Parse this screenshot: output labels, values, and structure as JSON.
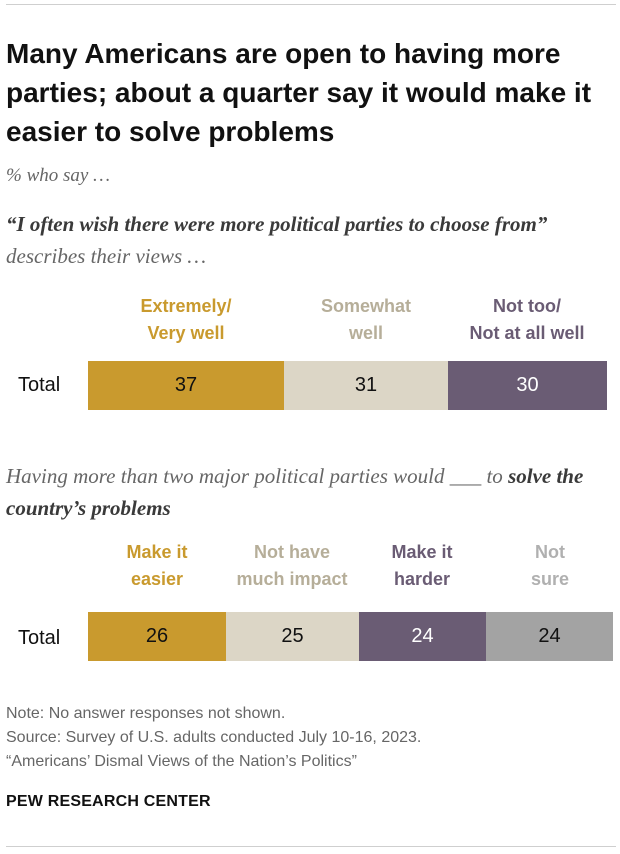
{
  "title": "Many Americans are open to having more parties; about a quarter say it would make it easier to solve problems",
  "subtitle": "% who say …",
  "q1": {
    "quote": "“I often wish there were more political parties to choose from”",
    "rest": " describes their views …"
  },
  "q2": {
    "before": "Having more than two major political parties would ___ to ",
    "bold": "solve the country’s problems"
  },
  "note": "Note: No answer responses not shown.",
  "source": "Source: Survey of U.S. adults conducted July 10-16, 2023.",
  "report": "“Americans’ Dismal Views of the Nation’s Politics”",
  "brand": "PEW RESEARCH CENTER",
  "colors": {
    "gold": "#C99A2E",
    "beige": "#DCD6C6",
    "purple": "#6A5C74",
    "gray": "#A3A3A3",
    "beige_text": "#B6AE99",
    "gray_text": "#B0B0B0"
  },
  "chart_data": [
    {
      "type": "bar",
      "orientation": "horizontal-stacked",
      "categories": [
        "Total"
      ],
      "series": [
        {
          "name": "Extremely/ Very well",
          "line1": "Extremely/",
          "line2": "Very well",
          "values": [
            37
          ]
        },
        {
          "name": "Somewhat well",
          "line1": "Somewhat",
          "line2": "well",
          "values": [
            31
          ]
        },
        {
          "name": "Not too/ Not at all well",
          "line1": "Not too/",
          "line2": "Not at all well",
          "values": [
            30
          ]
        }
      ],
      "unit": "%"
    },
    {
      "type": "bar",
      "orientation": "horizontal-stacked",
      "categories": [
        "Total"
      ],
      "series": [
        {
          "name": "Make it easier",
          "line1": "Make it",
          "line2": "easier",
          "values": [
            26
          ]
        },
        {
          "name": "Not have much impact",
          "line1": "Not have",
          "line2": "much impact",
          "values": [
            25
          ]
        },
        {
          "name": "Make it harder",
          "line1": "Make it",
          "line2": "harder",
          "values": [
            24
          ]
        },
        {
          "name": "Not sure",
          "line1": "Not",
          "line2": "sure",
          "values": [
            24
          ]
        }
      ],
      "unit": "%"
    }
  ]
}
